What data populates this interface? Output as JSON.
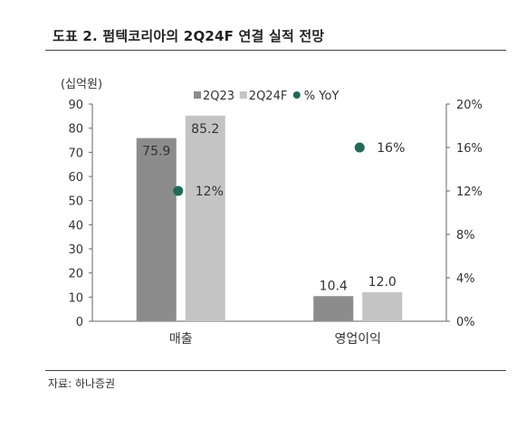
{
  "title": "도표 2. 펌텍코리아의 2Q24F 연결 실적 전망",
  "source": "자료: 하나증권",
  "chart_data": {
    "type": "bar",
    "unit_label": "(십억원)",
    "categories": [
      "매출",
      "영업이익"
    ],
    "series": [
      {
        "name": "2Q23",
        "values": [
          75.9,
          10.4
        ],
        "labels": [
          "75.9",
          "10.4"
        ],
        "color": "#8c8c8c"
      },
      {
        "name": "2Q24F",
        "values": [
          85.2,
          12.0
        ],
        "labels": [
          "85.2",
          "12.0"
        ],
        "color": "#c4c4c4"
      }
    ],
    "secondary_series": {
      "name": "% YoY",
      "type": "scatter",
      "values": [
        12,
        16
      ],
      "labels": [
        "12%",
        "16%"
      ],
      "color": "#1d6b58"
    },
    "ylim": [
      0,
      90
    ],
    "y_ticks": [
      0,
      10,
      20,
      30,
      40,
      50,
      60,
      70,
      80,
      90
    ],
    "y2lim": [
      0,
      20
    ],
    "y2_ticks": [
      "0%",
      "4%",
      "8%",
      "12%",
      "16%",
      "20%"
    ],
    "legend_position": "top"
  }
}
